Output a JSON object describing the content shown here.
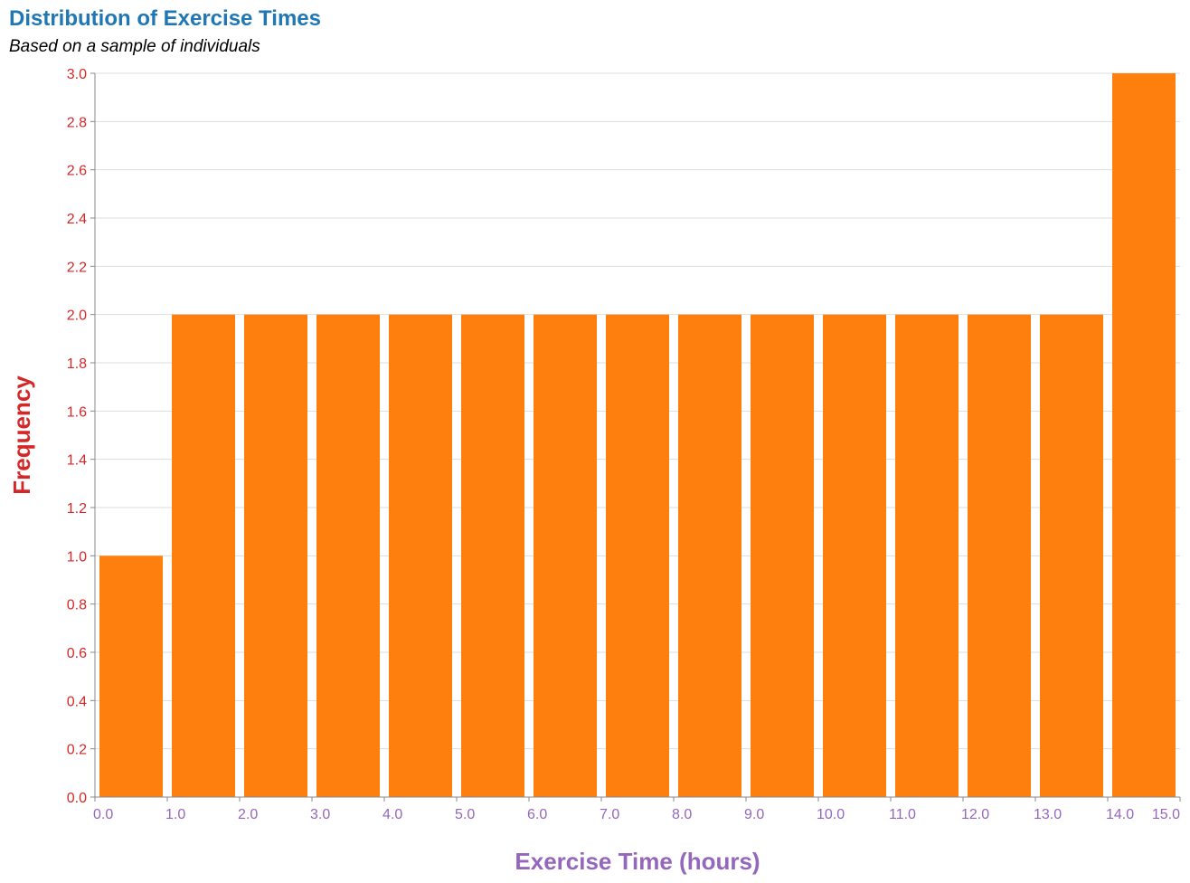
{
  "chart_data": {
    "type": "bar",
    "title": "Distribution of Exercise Times",
    "subtitle": "Based on a sample of individuals",
    "xlabel": "Exercise Time (hours)",
    "ylabel": "Frequency",
    "bins": [
      {
        "start": 0,
        "end": 1,
        "count": 1
      },
      {
        "start": 1,
        "end": 2,
        "count": 2
      },
      {
        "start": 2,
        "end": 3,
        "count": 2
      },
      {
        "start": 3,
        "end": 4,
        "count": 2
      },
      {
        "start": 4,
        "end": 5,
        "count": 2
      },
      {
        "start": 5,
        "end": 6,
        "count": 2
      },
      {
        "start": 6,
        "end": 7,
        "count": 2
      },
      {
        "start": 7,
        "end": 8,
        "count": 2
      },
      {
        "start": 8,
        "end": 9,
        "count": 2
      },
      {
        "start": 9,
        "end": 10,
        "count": 2
      },
      {
        "start": 10,
        "end": 11,
        "count": 2
      },
      {
        "start": 11,
        "end": 12,
        "count": 2
      },
      {
        "start": 12,
        "end": 13,
        "count": 2
      },
      {
        "start": 13,
        "end": 14,
        "count": 2
      },
      {
        "start": 14,
        "end": 15,
        "count": 3
      }
    ],
    "xlim": [
      0,
      15
    ],
    "ylim": [
      0,
      3
    ],
    "x_ticks": [
      "0.0",
      "1.0",
      "2.0",
      "3.0",
      "4.0",
      "5.0",
      "6.0",
      "7.0",
      "8.0",
      "9.0",
      "10.0",
      "11.0",
      "12.0",
      "13.0",
      "14.0",
      "15.0"
    ],
    "y_ticks": [
      "0.0",
      "0.2",
      "0.4",
      "0.6",
      "0.8",
      "1.0",
      "1.2",
      "1.4",
      "1.6",
      "1.8",
      "2.0",
      "2.2",
      "2.4",
      "2.6",
      "2.8",
      "3.0"
    ],
    "grid": true,
    "bar_color": "#ff7f0e",
    "title_color": "#1f77b4",
    "y_axis_color": "#d62728",
    "x_axis_color": "#9467bd"
  }
}
